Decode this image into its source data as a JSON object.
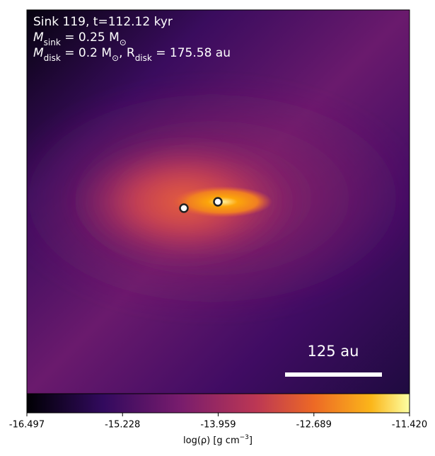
{
  "chart_data": {
    "type": "image",
    "annotations": [
      [
        "Sink 119, t=112.12 kyr"
      ],
      [
        "M",
        "sink",
        " = 0.25 M",
        "⊙"
      ],
      [
        "M",
        "disk",
        " = 0.2 M",
        "⊙",
        ", R",
        "disk",
        " = 175.58 au"
      ]
    ],
    "scale_bar_label": "125 au",
    "colorbar": {
      "lim": [
        -16.497,
        -11.42
      ],
      "ticks": [
        -16.497,
        -15.228,
        -13.959,
        -12.689,
        {
          "value": -11.42,
          "label": "-11.420"
        }
      ],
      "label": [
        "log(ρ) [g cm",
        "−3",
        "]"
      ]
    }
  }
}
